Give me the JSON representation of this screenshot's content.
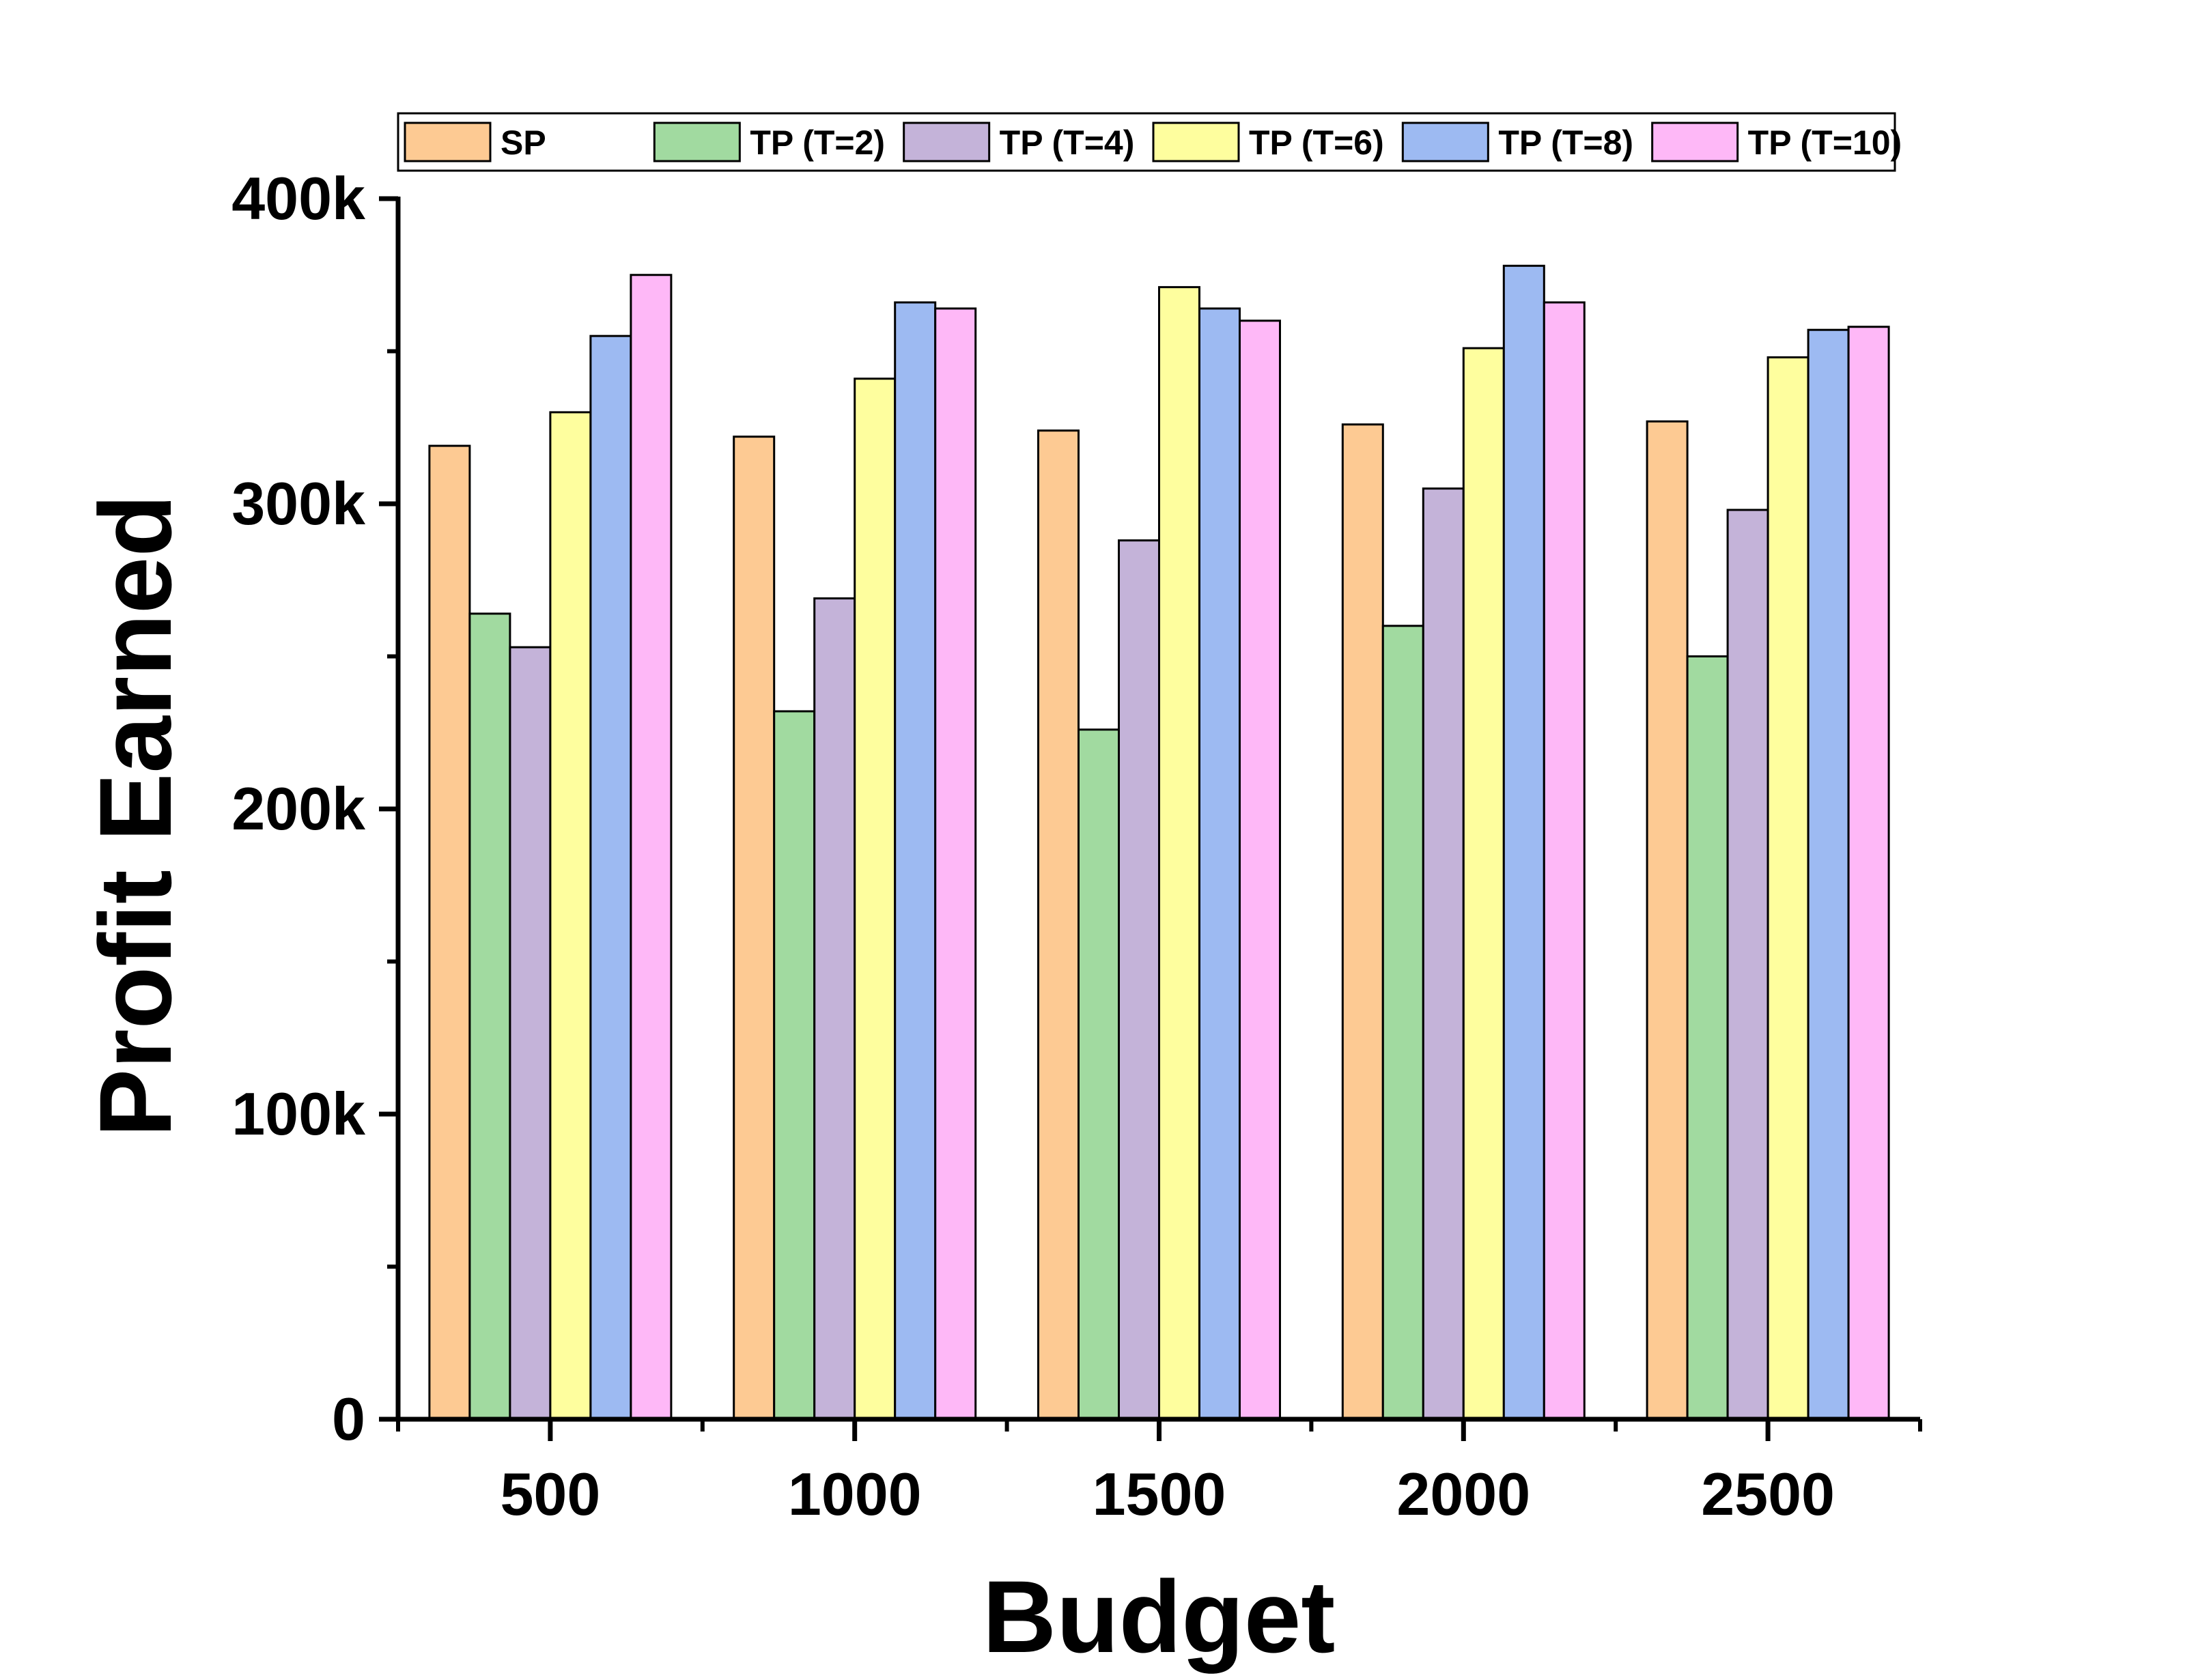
{
  "chart_data": {
    "type": "bar",
    "xlabel": "Budget",
    "ylabel": "Profit Earned",
    "categories": [
      "500",
      "1000",
      "1500",
      "2000",
      "2500"
    ],
    "ylim": [
      0,
      400000
    ],
    "yticks": [
      {
        "value": 0,
        "label": "0"
      },
      {
        "value": 100000,
        "label": "100k"
      },
      {
        "value": 200000,
        "label": "200k"
      },
      {
        "value": 300000,
        "label": "300k"
      },
      {
        "value": 400000,
        "label": "400k"
      }
    ],
    "legend_position": "top",
    "grid": false,
    "series": [
      {
        "name": "SP",
        "color": "#FDCA93",
        "values": [
          319000,
          322000,
          324000,
          326000,
          327000
        ]
      },
      {
        "name": "TP (T=2)",
        "color": "#A1DAA0",
        "values": [
          264000,
          232000,
          226000,
          260000,
          250000
        ]
      },
      {
        "name": "TP (T=4)",
        "color": "#C4B3D9",
        "values": [
          253000,
          269000,
          288000,
          305000,
          298000
        ]
      },
      {
        "name": "TP (T=6)",
        "color": "#FEFE9E",
        "values": [
          330000,
          341000,
          371000,
          351000,
          348000
        ]
      },
      {
        "name": "TP (T=8)",
        "color": "#9DBAF2",
        "values": [
          355000,
          366000,
          364000,
          378000,
          357000
        ]
      },
      {
        "name": "TP (T=10)",
        "color": "#FEB8F7",
        "values": [
          375000,
          364000,
          360000,
          366000,
          358000
        ]
      }
    ]
  }
}
